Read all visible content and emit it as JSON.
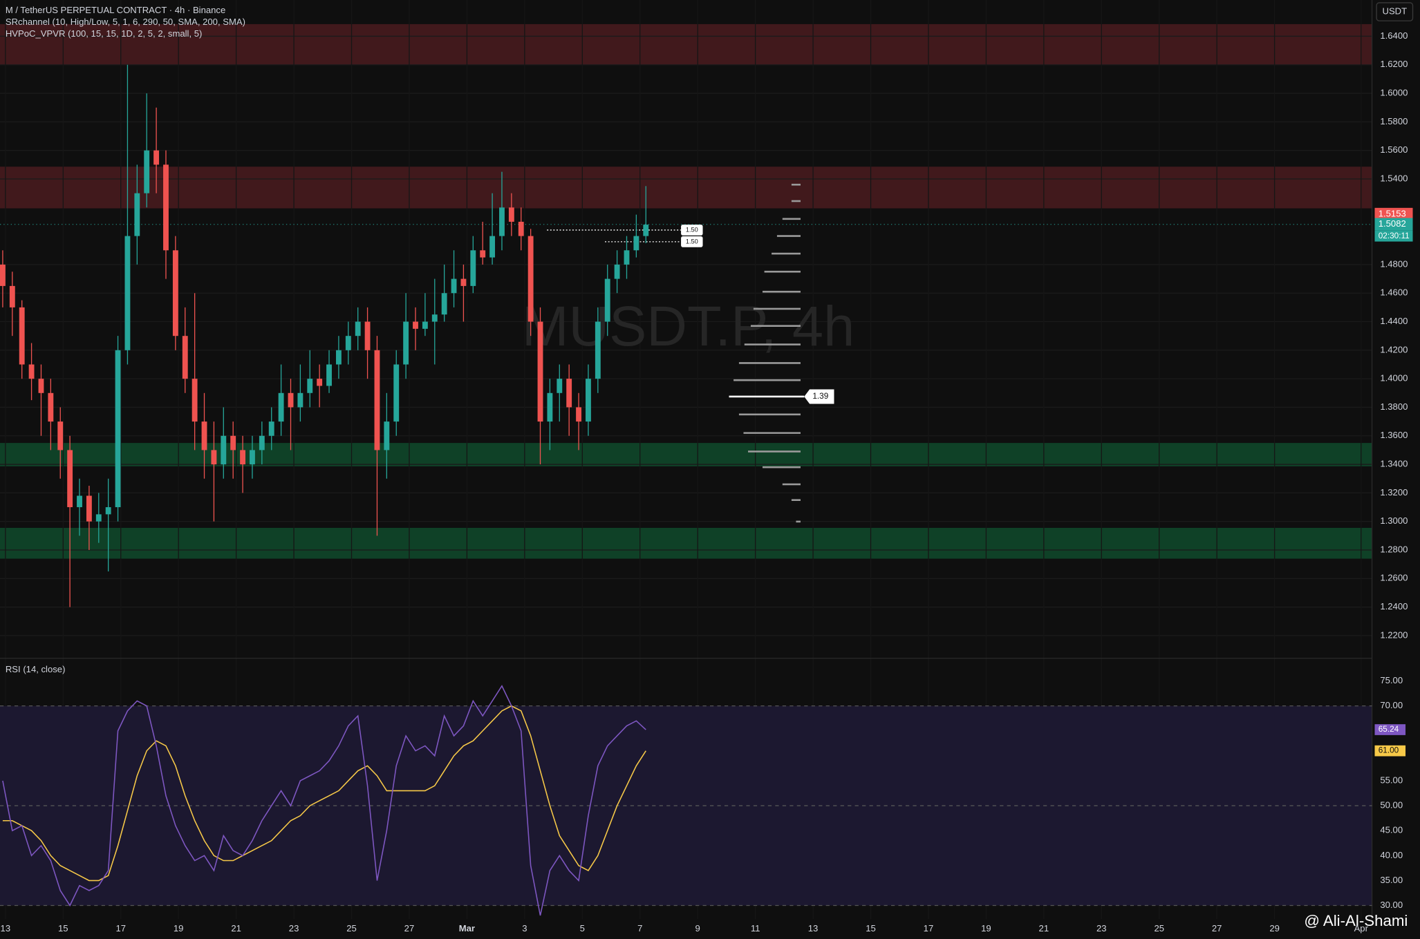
{
  "chart_data": {
    "type": "candlestick",
    "title": "M / TetherUS PERPETUAL CONTRACT · 4h · Binance",
    "indicators": [
      "SRchannel (10, High/Low, 5, 1, 6, 290, 50, SMA, 200, SMA)",
      "HVPoC_VPVR (100, 15, 15, 1D, 2, 5, 2, small, 5)"
    ],
    "watermark": "MUSDT.P, 4h",
    "currency": "USDT",
    "signature": "@ Ali-Al-Shami",
    "up_color": "#26a69a",
    "down_color": "#ef5350",
    "candles": [
      [
        1.48,
        1.49,
        1.45,
        1.465
      ],
      [
        1.465,
        1.475,
        1.43,
        1.45
      ],
      [
        1.45,
        1.455,
        1.4,
        1.41
      ],
      [
        1.41,
        1.425,
        1.385,
        1.4
      ],
      [
        1.4,
        1.41,
        1.36,
        1.39
      ],
      [
        1.39,
        1.4,
        1.35,
        1.37
      ],
      [
        1.37,
        1.38,
        1.33,
        1.35
      ],
      [
        1.35,
        1.36,
        1.24,
        1.31
      ],
      [
        1.31,
        1.33,
        1.29,
        1.318
      ],
      [
        1.318,
        1.325,
        1.28,
        1.3
      ],
      [
        1.3,
        1.32,
        1.285,
        1.305
      ],
      [
        1.305,
        1.33,
        1.265,
        1.31
      ],
      [
        1.31,
        1.43,
        1.3,
        1.42
      ],
      [
        1.42,
        1.62,
        1.41,
        1.5
      ],
      [
        1.5,
        1.55,
        1.48,
        1.53
      ],
      [
        1.53,
        1.6,
        1.52,
        1.56
      ],
      [
        1.56,
        1.59,
        1.53,
        1.55
      ],
      [
        1.55,
        1.56,
        1.47,
        1.49
      ],
      [
        1.49,
        1.5,
        1.42,
        1.43
      ],
      [
        1.43,
        1.45,
        1.39,
        1.4
      ],
      [
        1.4,
        1.46,
        1.35,
        1.37
      ],
      [
        1.37,
        1.39,
        1.33,
        1.35
      ],
      [
        1.35,
        1.37,
        1.3,
        1.34
      ],
      [
        1.34,
        1.38,
        1.33,
        1.36
      ],
      [
        1.36,
        1.37,
        1.33,
        1.35
      ],
      [
        1.35,
        1.36,
        1.32,
        1.34
      ],
      [
        1.34,
        1.36,
        1.33,
        1.35
      ],
      [
        1.35,
        1.37,
        1.34,
        1.36
      ],
      [
        1.36,
        1.38,
        1.35,
        1.37
      ],
      [
        1.37,
        1.41,
        1.36,
        1.39
      ],
      [
        1.39,
        1.4,
        1.35,
        1.38
      ],
      [
        1.38,
        1.41,
        1.37,
        1.39
      ],
      [
        1.39,
        1.42,
        1.38,
        1.4
      ],
      [
        1.4,
        1.41,
        1.38,
        1.395
      ],
      [
        1.395,
        1.42,
        1.39,
        1.41
      ],
      [
        1.41,
        1.43,
        1.4,
        1.42
      ],
      [
        1.42,
        1.44,
        1.41,
        1.43
      ],
      [
        1.43,
        1.45,
        1.42,
        1.44
      ],
      [
        1.44,
        1.45,
        1.4,
        1.42
      ],
      [
        1.42,
        1.43,
        1.29,
        1.35
      ],
      [
        1.35,
        1.39,
        1.33,
        1.37
      ],
      [
        1.37,
        1.42,
        1.36,
        1.41
      ],
      [
        1.41,
        1.46,
        1.4,
        1.44
      ],
      [
        1.44,
        1.45,
        1.42,
        1.435
      ],
      [
        1.435,
        1.46,
        1.43,
        1.44
      ],
      [
        1.44,
        1.47,
        1.41,
        1.445
      ],
      [
        1.445,
        1.48,
        1.44,
        1.46
      ],
      [
        1.46,
        1.49,
        1.45,
        1.47
      ],
      [
        1.47,
        1.48,
        1.44,
        1.465
      ],
      [
        1.465,
        1.5,
        1.46,
        1.49
      ],
      [
        1.49,
        1.51,
        1.48,
        1.485
      ],
      [
        1.485,
        1.53,
        1.48,
        1.5
      ],
      [
        1.5,
        1.545,
        1.49,
        1.52
      ],
      [
        1.52,
        1.53,
        1.5,
        1.51
      ],
      [
        1.51,
        1.52,
        1.49,
        1.5
      ],
      [
        1.5,
        1.505,
        1.43,
        1.44
      ],
      [
        1.44,
        1.45,
        1.34,
        1.37
      ],
      [
        1.37,
        1.4,
        1.35,
        1.39
      ],
      [
        1.39,
        1.41,
        1.37,
        1.4
      ],
      [
        1.4,
        1.41,
        1.36,
        1.38
      ],
      [
        1.38,
        1.39,
        1.35,
        1.37
      ],
      [
        1.37,
        1.41,
        1.36,
        1.4
      ],
      [
        1.4,
        1.45,
        1.39,
        1.44
      ],
      [
        1.44,
        1.48,
        1.43,
        1.47
      ],
      [
        1.47,
        1.49,
        1.46,
        1.48
      ],
      [
        1.48,
        1.5,
        1.47,
        1.49
      ],
      [
        1.49,
        1.515,
        1.485,
        1.5
      ],
      [
        1.5,
        1.535,
        1.495,
        1.508
      ]
    ],
    "ylim": [
      1.2041,
      1.6654
    ],
    "yticks": [
      {
        "value": 1.64,
        "label": "1.6400"
      },
      {
        "value": 1.62,
        "label": "1.6200"
      },
      {
        "value": 1.6,
        "label": "1.6000"
      },
      {
        "value": 1.58,
        "label": "1.5800"
      },
      {
        "value": 1.56,
        "label": "1.5600"
      },
      {
        "value": 1.54,
        "label": "1.5400"
      },
      {
        "value": 1.48,
        "label": "1.4800"
      },
      {
        "value": 1.46,
        "label": "1.4600"
      },
      {
        "value": 1.44,
        "label": "1.4400"
      },
      {
        "value": 1.42,
        "label": "1.4200"
      },
      {
        "value": 1.4,
        "label": "1.4000"
      },
      {
        "value": 1.38,
        "label": "1.3800"
      },
      {
        "value": 1.36,
        "label": "1.3600"
      },
      {
        "value": 1.34,
        "label": "1.3400"
      },
      {
        "value": 1.32,
        "label": "1.3200"
      },
      {
        "value": 1.3,
        "label": "1.3000"
      },
      {
        "value": 1.28,
        "label": "1.2800"
      },
      {
        "value": 1.26,
        "label": "1.2600"
      },
      {
        "value": 1.24,
        "label": "1.2400"
      },
      {
        "value": 1.22,
        "label": "1.2200"
      }
    ],
    "zones": [
      {
        "range": [
          1.62,
          1.6485
        ],
        "color": "#4a1b1f"
      },
      {
        "range": [
          1.5194,
          1.5486
        ],
        "color": "#4a1b1f"
      },
      {
        "range": [
          1.3386,
          1.355
        ],
        "color": "#0f4a2c"
      },
      {
        "range": [
          1.2739,
          1.2955
        ],
        "color": "#0f4a2c"
      }
    ],
    "volume_profile": {
      "levels": [
        1.536,
        1.5245,
        1.512,
        1.5,
        1.4877,
        1.475,
        1.461,
        1.449,
        1.437,
        1.424,
        1.411,
        1.399,
        1.375,
        1.362,
        1.349,
        1.338,
        1.326,
        1.315,
        1.2999
      ],
      "sizes": [
        10,
        10,
        20,
        26,
        32,
        40,
        42,
        52,
        55,
        62,
        68,
        74,
        68,
        63,
        58,
        42,
        20,
        10,
        5
      ],
      "poc": {
        "value": 1.3875,
        "label": "1.39"
      },
      "poc_size": 79
    },
    "levels": [
      {
        "value": 1.5042,
        "label": "1.50"
      },
      {
        "value": 1.496,
        "label": "1.50"
      }
    ],
    "last_price": {
      "value": 1.5153,
      "label": "1.5153"
    },
    "current_price": {
      "value": 1.5082,
      "label": "1.5082"
    },
    "countdown": "02:30:11",
    "xlabels": [
      "13",
      "15",
      "17",
      "19",
      "21",
      "23",
      "25",
      "27",
      "Mar",
      "3",
      "5",
      "7",
      "9",
      "11",
      "13",
      "15",
      "17",
      "19",
      "21",
      "23",
      "25",
      "27",
      "29",
      "Apr"
    ],
    "rsi": {
      "title": "RSI (14, close)",
      "color": "#7e57c2",
      "ma_color": "#f7c948",
      "values": [
        55,
        45,
        46,
        40,
        42,
        39,
        33,
        30,
        34,
        33,
        34,
        37,
        65,
        69,
        71,
        70,
        62,
        52,
        46,
        42,
        39,
        40,
        37,
        44,
        41,
        40,
        43,
        47,
        50,
        53,
        50,
        55,
        56,
        57,
        59,
        62,
        66,
        68,
        54,
        35,
        45,
        58,
        64,
        61,
        62,
        60,
        68,
        64,
        66,
        71,
        68,
        71,
        74,
        70,
        65,
        38,
        28,
        37,
        40,
        37,
        35,
        48,
        58,
        62,
        64,
        66,
        67,
        65.24
      ],
      "ma": [
        47,
        47,
        46,
        45,
        43,
        40,
        38,
        37,
        36,
        35,
        35,
        36,
        42,
        49,
        56,
        61,
        63,
        62,
        58,
        52,
        47,
        43,
        40,
        39,
        39,
        40,
        41,
        42,
        43,
        45,
        47,
        48,
        50,
        51,
        52,
        53,
        55,
        57,
        58,
        56,
        53,
        53,
        53,
        53,
        53,
        54,
        57,
        60,
        62,
        63,
        65,
        67,
        69,
        70,
        69,
        64,
        57,
        50,
        44,
        41,
        38,
        37,
        40,
        45,
        50,
        54,
        58,
        61
      ],
      "ylim": [
        27.28,
        79.54
      ],
      "yticks": [
        {
          "value": 75,
          "label": "75.00"
        },
        {
          "value": 70,
          "label": "70.00"
        },
        {
          "value": 55,
          "label": "55.00"
        },
        {
          "value": 50,
          "label": "50.00"
        },
        {
          "value": 45,
          "label": "45.00"
        },
        {
          "value": 40,
          "label": "40.00"
        },
        {
          "value": 35,
          "label": "35.00"
        },
        {
          "value": 30,
          "label": "30.00"
        }
      ],
      "band": [
        30,
        70
      ],
      "mid": 50,
      "last": {
        "value": 65.24,
        "label": "65.24"
      },
      "ma_last": {
        "value": 61,
        "label": "61.00"
      }
    }
  }
}
